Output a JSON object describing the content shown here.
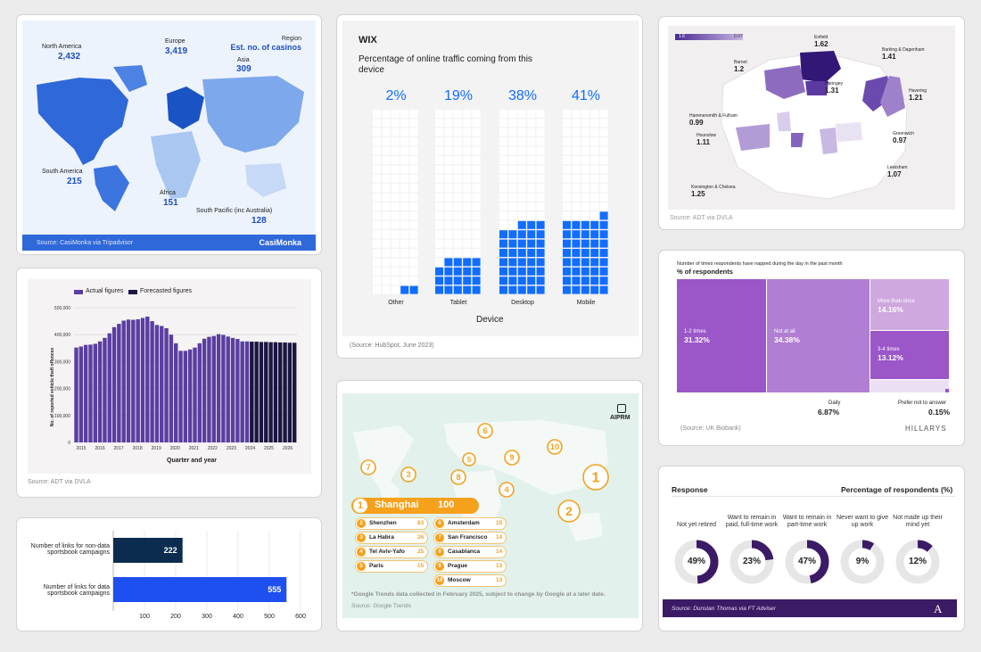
{
  "colors": {
    "page_bg": "#ebebeb",
    "casino_blue": "#2f68d8",
    "wix_blue": "#116dff",
    "navy": "#0b2c4e",
    "purple": "#3a1f7a",
    "treemap_purple": "#9b5cc8",
    "gray_ring": "#e6e6e6"
  },
  "casinos": {
    "header_label": "Region",
    "header_title": "Est. no. of casinos",
    "source": "Source: CasiMonka via Tripadvisor",
    "logo": "CasiMonka",
    "regions": [
      {
        "name": "North America",
        "value": "2,432"
      },
      {
        "name": "Europe",
        "value": "3,419"
      },
      {
        "name": "Asia",
        "value": "309"
      },
      {
        "name": "South America",
        "value": "215"
      },
      {
        "name": "Africa",
        "value": "151"
      },
      {
        "name": "South Pacific (inc Australia)",
        "value": "128"
      }
    ]
  },
  "wix": {
    "logo": "WIX",
    "title": "Percentage of online traffic coming from this device",
    "xlabel": "Device",
    "source": "(Source: HubSpot, June 2023)"
  },
  "map_ldn": {
    "scale_min": "1.6",
    "scale_max": "0.97",
    "source": "Source: ADT via DVLA",
    "boroughs": [
      {
        "name": "Enfield",
        "value": "1.62"
      },
      {
        "name": "Barnet",
        "value": "1.2"
      },
      {
        "name": "Barking & Dagenham",
        "value": "1.41"
      },
      {
        "name": "Haringey",
        "value": "1.31"
      },
      {
        "name": "Havering",
        "value": "1.21"
      },
      {
        "name": "Hammersmith & Fulham",
        "value": "0.99"
      },
      {
        "name": "Hounslow",
        "value": "1.11"
      },
      {
        "name": "Greenwich",
        "value": "0.97"
      },
      {
        "name": "Lewisham",
        "value": "1.07"
      },
      {
        "name": "Kensington & Chelsea",
        "value": "1.25"
      }
    ]
  },
  "theft": {
    "legend_actual": "Actual figures",
    "legend_forecast": "Forecasted figures",
    "ylabel": "No. of reported vehicle theft offences",
    "xlabel": "Quarter and year",
    "source": "Source: ADT via DVLA"
  },
  "trends": {
    "logo": "AIPRM",
    "top": {
      "rank": "1",
      "city": "Shanghai",
      "value": "100"
    },
    "footnote": "*Google Trends data collected in February 2025, subject to change by Google at a later date.",
    "source": "Source: Google Trends",
    "cities": [
      {
        "rank": "2",
        "city": "Shenzhen",
        "value": "83"
      },
      {
        "rank": "3",
        "city": "La Habra",
        "value": "26"
      },
      {
        "rank": "4",
        "city": "Tel Aviv-Yafo",
        "value": "25"
      },
      {
        "rank": "5",
        "city": "Paris",
        "value": "15"
      },
      {
        "rank": "6",
        "city": "Amsterdam",
        "value": "15"
      },
      {
        "rank": "7",
        "city": "San Francisco",
        "value": "14"
      },
      {
        "rank": "8",
        "city": "Casablanca",
        "value": "14"
      },
      {
        "rank": "9",
        "city": "Prague",
        "value": "13"
      },
      {
        "rank": "10",
        "city": "Moscow",
        "value": "13"
      }
    ]
  },
  "nap": {
    "subtitle": "Number of times respondents have napped during the day in the past month",
    "title": "% of respondents",
    "source": "(Source: UK Biobank)",
    "logo": "HILLARYS",
    "cells": [
      {
        "label": "1-2 times",
        "value": "31.32%"
      },
      {
        "label": "Not at all",
        "value": "34.38%"
      },
      {
        "label": "More than once",
        "value": "14.16%"
      },
      {
        "label": "3-4 times",
        "value": "13.12%"
      },
      {
        "label": "Daily",
        "value": "6.87%"
      },
      {
        "label": "Prefer not to answer",
        "value": "0.15%"
      }
    ]
  },
  "retire": {
    "left_header": "Response",
    "right_header": "Percentage of respondents (%)",
    "source": "Source: Dunstan Thomas via FT Adviser",
    "logo": "A",
    "items": [
      {
        "label": "Not yet retired",
        "value": "49%"
      },
      {
        "label": "Want to remain in paid, full-time work",
        "value": "23%"
      },
      {
        "label": "Want to remain in part-time work",
        "value": "47%"
      },
      {
        "label": "Never want to give up work",
        "value": "9%"
      },
      {
        "label": "Not made up their mind yet",
        "value": "12%"
      }
    ]
  },
  "chart_data": [
    {
      "type": "bar",
      "id": "device_traffic",
      "title": "Percentage of online traffic coming from this device",
      "xlabel": "Device",
      "categories": [
        "Other",
        "Tablet",
        "Desktop",
        "Mobile"
      ],
      "values": [
        2,
        19,
        38,
        41
      ],
      "value_labels": [
        "2%",
        "19%",
        "38%",
        "41%"
      ]
    },
    {
      "type": "bar",
      "id": "vehicle_theft",
      "ylabel": "No. of reported vehicle theft offences",
      "xlabel": "Quarter and year",
      "ylim": [
        0,
        500000
      ],
      "yticks": [
        "0",
        "100,000",
        "200,000",
        "300,000",
        "400,000",
        "500,000"
      ],
      "xticks": [
        "2015",
        "2016",
        "2017",
        "2018",
        "2019",
        "2020",
        "2021",
        "2022",
        "2023",
        "2024",
        "2025",
        "2026"
      ],
      "series": [
        {
          "name": "Actual figures",
          "values": [
            352000,
            356000,
            362000,
            363000,
            366000,
            375000,
            388000,
            405000,
            428000,
            440000,
            452000,
            456000,
            455000,
            457000,
            462000,
            467000,
            450000,
            436000,
            432000,
            424000,
            400000,
            368000,
            340000,
            340000,
            345000,
            352000,
            368000,
            385000,
            392000,
            395000,
            402000,
            399000,
            393000,
            388000,
            384000,
            375000,
            375000
          ]
        },
        {
          "name": "Forecasted figures",
          "values": [
            374000,
            374000,
            373000,
            373000,
            372000,
            372000,
            371000,
            371000,
            370000,
            370000
          ]
        }
      ]
    },
    {
      "type": "bar",
      "id": "sportsbook_links",
      "categories": [
        "Number of links for non-data sportsbook campaigns",
        "Number of links for data sportsbook campaigns"
      ],
      "values": [
        222,
        555
      ],
      "xticks": [
        "100",
        "200",
        "300",
        "400",
        "500",
        "600"
      ],
      "xlim": [
        0,
        600
      ]
    },
    {
      "type": "pie",
      "id": "nap_treemap",
      "title": "% of respondents",
      "categories": [
        "1-2 times",
        "Not at all",
        "More than once",
        "3-4 times",
        "Daily",
        "Prefer not to answer"
      ],
      "values": [
        31.32,
        34.38,
        14.16,
        13.12,
        6.87,
        0.15
      ]
    },
    {
      "type": "pie",
      "id": "retirement_donuts",
      "categories": [
        "Not yet retired",
        "Want to remain in paid, full-time work",
        "Want to remain in part-time work",
        "Never want to give up work",
        "Not made up their mind yet"
      ],
      "values": [
        49,
        23,
        47,
        9,
        12
      ]
    }
  ]
}
